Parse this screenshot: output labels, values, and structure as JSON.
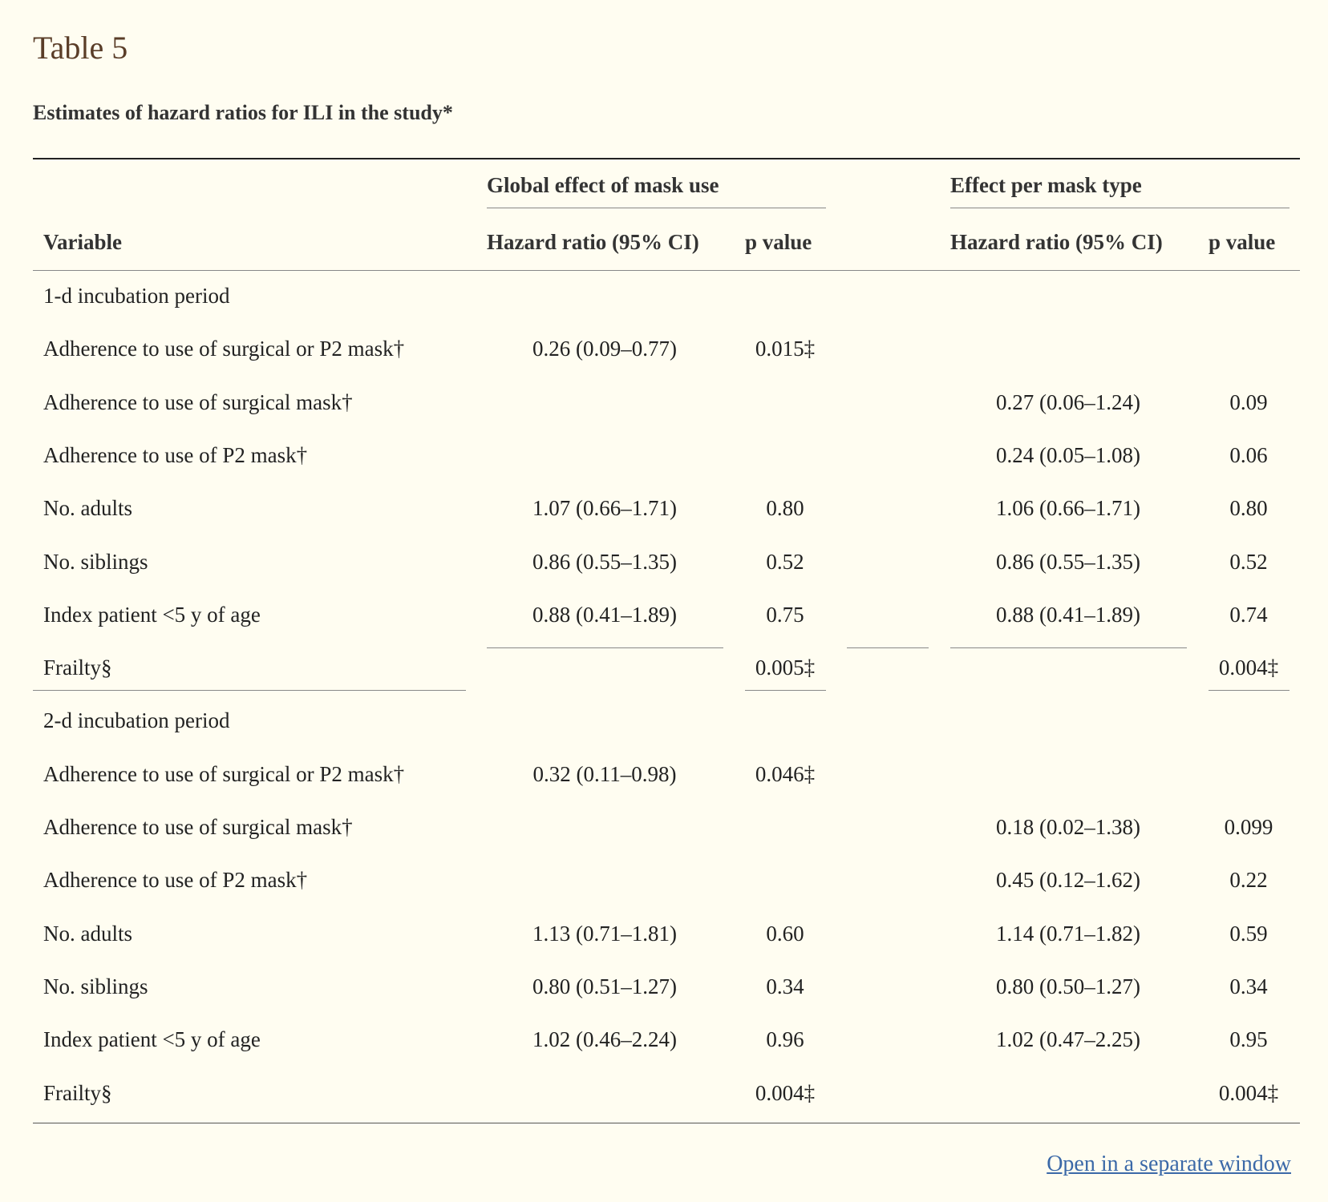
{
  "table_title": "Table 5",
  "table_caption": "Estimates of hazard ratios for ILI in the study*",
  "header": {
    "group_global": "Global effect of mask use",
    "group_per_type": "Effect per mask type",
    "variable": "Variable",
    "hr_global": "Hazard ratio (95% CI)",
    "p_global": "p value",
    "hr_type": "Hazard ratio (95% CI)",
    "p_type": "p value"
  },
  "rows": [
    {
      "variable": "1-d incubation period",
      "hr_global": "",
      "p_global": "",
      "hr_type": "",
      "p_type": ""
    },
    {
      "variable": "Adherence to use of surgical or P2 mask†",
      "hr_global": "0.26 (0.09–0.77)",
      "p_global": "0.015‡",
      "hr_type": "",
      "p_type": ""
    },
    {
      "variable": "Adherence to use of surgical mask†",
      "hr_global": "",
      "p_global": "",
      "hr_type": "0.27 (0.06–1.24)",
      "p_type": "0.09"
    },
    {
      "variable": "Adherence to use of P2 mask†",
      "hr_global": "",
      "p_global": "",
      "hr_type": "0.24 (0.05–1.08)",
      "p_type": "0.06"
    },
    {
      "variable": "No. adults",
      "hr_global": "1.07 (0.66–1.71)",
      "p_global": "0.80",
      "hr_type": "1.06 (0.66–1.71)",
      "p_type": "0.80"
    },
    {
      "variable": "No. siblings",
      "hr_global": "0.86 (0.55–1.35)",
      "p_global": "0.52",
      "hr_type": "0.86 (0.55–1.35)",
      "p_type": "0.52"
    },
    {
      "variable": "Index patient <5 y of age",
      "hr_global": "0.88 (0.41–1.89)",
      "p_global": "0.75",
      "hr_type": "0.88 (0.41–1.89)",
      "p_type": "0.74"
    },
    {
      "variable": "Frailty§",
      "hr_global": "",
      "p_global": "0.005‡",
      "hr_type": "",
      "p_type": "0.004‡"
    },
    {
      "variable": "2-d incubation period",
      "hr_global": "",
      "p_global": "",
      "hr_type": "",
      "p_type": ""
    },
    {
      "variable": "Adherence to use of surgical or P2 mask†",
      "hr_global": "0.32 (0.11–0.98)",
      "p_global": "0.046‡",
      "hr_type": "",
      "p_type": ""
    },
    {
      "variable": "Adherence to use of surgical mask†",
      "hr_global": "",
      "p_global": "",
      "hr_type": "0.18 (0.02–1.38)",
      "p_type": "0.099"
    },
    {
      "variable": "Adherence to use of P2 mask†",
      "hr_global": "",
      "p_global": "",
      "hr_type": "0.45 (0.12–1.62)",
      "p_type": "0.22"
    },
    {
      "variable": "No. adults",
      "hr_global": "1.13 (0.71–1.81)",
      "p_global": "0.60",
      "hr_type": "1.14 (0.71–1.82)",
      "p_type": "0.59"
    },
    {
      "variable": "No. siblings",
      "hr_global": "0.80 (0.51–1.27)",
      "p_global": "0.34",
      "hr_type": "0.80 (0.50–1.27)",
      "p_type": "0.34"
    },
    {
      "variable": "Index patient <5 y of age",
      "hr_global": "1.02 (0.46–2.24)",
      "p_global": "0.96",
      "hr_type": "1.02 (0.47–2.25)",
      "p_type": "0.95"
    },
    {
      "variable": "Frailty§",
      "hr_global": "",
      "p_global": "0.004‡",
      "hr_type": "",
      "p_type": "0.004‡"
    }
  ],
  "open_link": "Open in a separate window"
}
